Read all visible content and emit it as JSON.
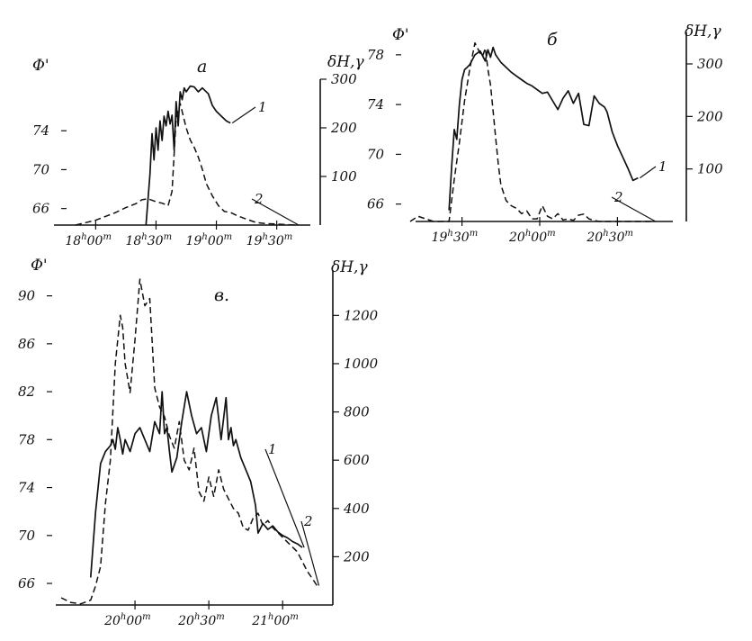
{
  "chart_data": [
    {
      "type": "line",
      "panel_label": "а",
      "ylabel_left": "Φ'",
      "ylabel_right": "δH,γ",
      "left_ticks": [
        66,
        70,
        74
      ],
      "right_ticks": [
        100,
        200,
        300
      ],
      "x_ticks": [
        {
          "h": "18",
          "m": "00"
        },
        {
          "h": "18",
          "m": "30"
        },
        {
          "h": "19",
          "m": "00"
        },
        {
          "h": "19",
          "m": "30"
        }
      ],
      "xlim_min": [
        1070,
        1180
      ],
      "ylim_left": [
        64.3,
        79.3
      ],
      "ylim_right": [
        0,
        300
      ],
      "series": [
        {
          "name": "1",
          "axis": "left",
          "x": [
            1105,
            1107,
            1108,
            1109,
            1110,
            1111,
            1112,
            1113,
            1114,
            1115,
            1116,
            1117,
            1118,
            1119,
            1120,
            1121,
            1122,
            1123,
            1124,
            1125,
            1127,
            1129,
            1131,
            1133,
            1136,
            1138,
            1140,
            1142,
            1145,
            1147
          ],
          "y": [
            64.3,
            69.5,
            73.7,
            71.0,
            74.3,
            72.0,
            75.0,
            73.0,
            75.5,
            74.5,
            76.0,
            74.7,
            75.6,
            72.0,
            77.0,
            74.5,
            78.0,
            77.2,
            78.4,
            78.0,
            78.6,
            78.5,
            78.0,
            78.4,
            77.8,
            76.6,
            76.0,
            75.6,
            75.0,
            74.8
          ]
        },
        {
          "name": "2",
          "axis": "right",
          "x": [
            1070,
            1080,
            1085,
            1090,
            1095,
            1100,
            1103,
            1106,
            1110,
            1113,
            1116,
            1118,
            1120,
            1122,
            1125,
            1127,
            1129,
            1131,
            1133,
            1135,
            1138,
            1141,
            1144,
            1147,
            1150,
            1155,
            1160,
            1165,
            1170,
            1175,
            1180
          ],
          "y": [
            0,
            10,
            18,
            26,
            36,
            44,
            52,
            54,
            48,
            45,
            40,
            70,
            220,
            250,
            200,
            175,
            160,
            140,
            115,
            85,
            60,
            40,
            28,
            26,
            20,
            12,
            5,
            3,
            2,
            1,
            0
          ]
        }
      ]
    },
    {
      "type": "line",
      "panel_label": "б",
      "ylabel_left": "Φ'",
      "ylabel_right": "δH,γ",
      "left_ticks": [
        66,
        70,
        74,
        78
      ],
      "right_ticks": [
        100,
        200,
        300
      ],
      "x_ticks": [
        {
          "h": "19",
          "m": "30"
        },
        {
          "h": "20",
          "m": "00"
        },
        {
          "h": "20",
          "m": "30"
        }
      ],
      "xlim_min": [
        1150,
        1250
      ],
      "ylim_left": [
        64.6,
        79.8
      ],
      "ylim_right": [
        0,
        360
      ],
      "series": [
        {
          "name": "1",
          "axis": "left",
          "x": [
            1165,
            1166,
            1167,
            1168,
            1169,
            1170,
            1171,
            1172,
            1173,
            1175,
            1177,
            1179,
            1180,
            1181,
            1182,
            1183,
            1185,
            1187,
            1189,
            1191,
            1193,
            1195,
            1197,
            1199,
            1201,
            1203,
            1205,
            1207,
            1209,
            1211,
            1213,
            1215,
            1217,
            1219,
            1221,
            1223,
            1225,
            1226,
            1228,
            1230,
            1232,
            1234,
            1236,
            1238
          ],
          "y": [
            65.5,
            69.0,
            72.0,
            71.2,
            74.0,
            76.0,
            76.8,
            77.0,
            77.2,
            78.0,
            78.3,
            77.5,
            78.4,
            77.8,
            78.6,
            78.0,
            77.4,
            77.0,
            76.6,
            76.3,
            76.0,
            75.7,
            75.5,
            75.2,
            74.9,
            75.0,
            74.3,
            73.6,
            74.5,
            75.1,
            74.1,
            74.9,
            72.4,
            72.3,
            74.7,
            74.1,
            73.8,
            73.4,
            71.8,
            70.7,
            69.8,
            68.9,
            67.9,
            68.1
          ]
        },
        {
          "name": "2",
          "axis": "right",
          "x": [
            1150,
            1153,
            1156,
            1159,
            1162,
            1165,
            1167,
            1169,
            1171,
            1173,
            1175,
            1177,
            1178,
            1179,
            1180,
            1181,
            1182,
            1183,
            1184,
            1185,
            1187,
            1189,
            1191,
            1193,
            1195,
            1197,
            1199,
            1201,
            1203,
            1205,
            1207,
            1209,
            1211,
            1213,
            1215,
            1217,
            1219,
            1221,
            1223,
            1225,
            1228,
            1232,
            1236,
            1240,
            1244
          ],
          "y": [
            0,
            10,
            5,
            0,
            0,
            0,
            80,
            150,
            230,
            290,
            340,
            320,
            315,
            330,
            290,
            260,
            210,
            160,
            110,
            70,
            40,
            30,
            25,
            15,
            20,
            5,
            5,
            30,
            10,
            5,
            15,
            3,
            5,
            2,
            12,
            14,
            5,
            2,
            0,
            0,
            0,
            0,
            0,
            0,
            0
          ]
        }
      ]
    },
    {
      "type": "line",
      "panel_label": "в.",
      "ylabel_left": "Φ'",
      "ylabel_right": "δH,γ",
      "left_ticks": [
        66,
        70,
        74,
        78,
        82,
        86,
        90
      ],
      "right_ticks": [
        200,
        400,
        600,
        800,
        1000,
        1200
      ],
      "x_ticks": [
        {
          "h": "20",
          "m": "00"
        },
        {
          "h": "20",
          "m": "30"
        },
        {
          "h": "21",
          "m": "00"
        }
      ],
      "xlim_min": [
        1170,
        1276
      ],
      "ylim_left": [
        64.2,
        93.2
      ],
      "ylim_right": [
        0,
        1440
      ],
      "series": [
        {
          "name": "1",
          "axis": "left",
          "x": [
            1182,
            1184,
            1186,
            1188,
            1190,
            1191,
            1192,
            1193,
            1194,
            1195,
            1196,
            1198,
            1200,
            1202,
            1204,
            1206,
            1208,
            1210,
            1211,
            1212,
            1213,
            1214,
            1215,
            1217,
            1219,
            1221,
            1223,
            1225,
            1227,
            1229,
            1231,
            1233,
            1235,
            1237,
            1238,
            1239,
            1240,
            1241,
            1243,
            1245,
            1247,
            1249,
            1250,
            1252,
            1254,
            1256,
            1258,
            1260,
            1262,
            1264,
            1266,
            1268
          ],
          "y": [
            66.5,
            72.0,
            76.0,
            77.0,
            77.5,
            78.0,
            77.2,
            79.0,
            78.0,
            76.8,
            78.0,
            77.0,
            78.5,
            79.0,
            78.0,
            77.0,
            79.5,
            78.5,
            82.0,
            78.5,
            79.0,
            77.0,
            75.3,
            76.5,
            79.5,
            82.0,
            80.0,
            78.5,
            79.0,
            77.0,
            80.0,
            81.5,
            78.0,
            81.5,
            78.0,
            79.0,
            77.5,
            78.0,
            76.5,
            75.5,
            74.5,
            72.5,
            70.2,
            71.0,
            70.5,
            70.8,
            70.3,
            70.0,
            69.8,
            69.5,
            69.3,
            69.0
          ]
        },
        {
          "name": "2",
          "axis": "right",
          "x": [
            1170,
            1174,
            1178,
            1182,
            1184,
            1186,
            1188,
            1190,
            1192,
            1194,
            1195,
            1196,
            1198,
            1200,
            1202,
            1204,
            1206,
            1208,
            1210,
            1212,
            1214,
            1216,
            1218,
            1220,
            1222,
            1224,
            1226,
            1228,
            1230,
            1232,
            1234,
            1236,
            1238,
            1240,
            1242,
            1244,
            1246,
            1248,
            1250,
            1252,
            1254,
            1256,
            1258,
            1260,
            1262,
            1264,
            1266,
            1268,
            1270,
            1272,
            1274
          ],
          "y": [
            30,
            10,
            5,
            20,
            80,
            160,
            420,
            600,
            1000,
            1200,
            1150,
            1000,
            880,
            1100,
            1350,
            1240,
            1270,
            900,
            820,
            780,
            700,
            650,
            760,
            600,
            560,
            650,
            470,
            430,
            530,
            450,
            560,
            480,
            440,
            400,
            380,
            320,
            310,
            360,
            380,
            330,
            350,
            320,
            300,
            280,
            260,
            240,
            220,
            180,
            140,
            110,
            80
          ]
        }
      ]
    }
  ]
}
